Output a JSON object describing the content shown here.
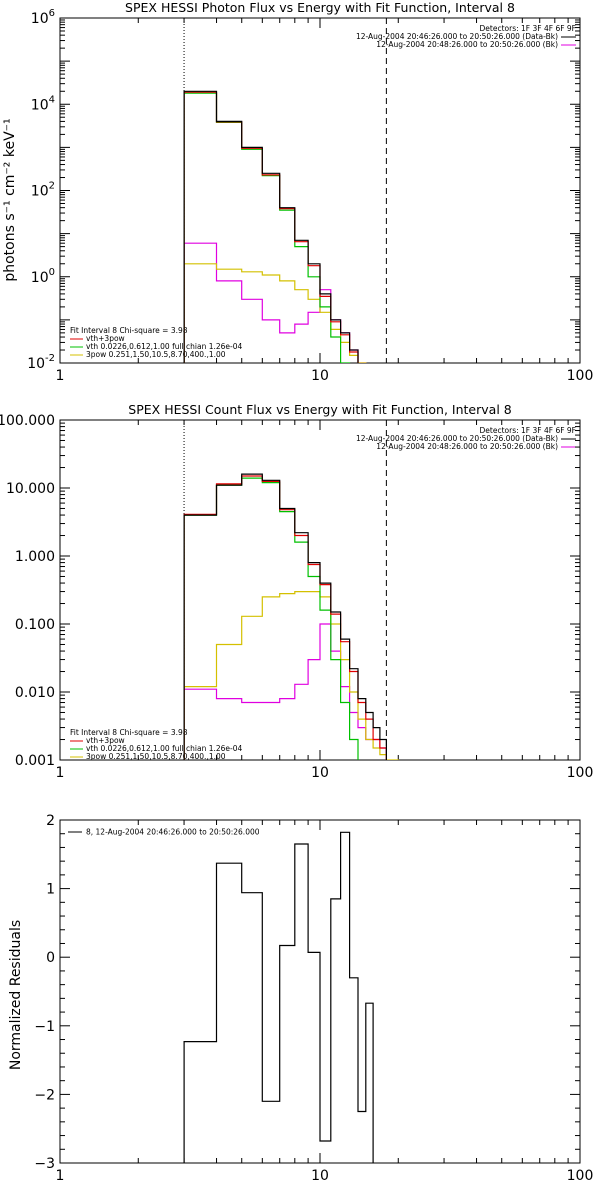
{
  "chart_data": [
    {
      "type": "line",
      "title": "SPEX HESSI Photon Flux vs Energy with Fit Function, Interval 8",
      "ylabel": "photons s⁻¹ cm⁻² keV⁻¹",
      "xlabel": "",
      "xscale": "log",
      "yscale": "log",
      "xlim": [
        1,
        100
      ],
      "ylim": [
        0.01,
        1000000
      ],
      "x_ticks": [
        "1",
        "10",
        "100"
      ],
      "y_ticks": [
        {
          "v": 0.01,
          "base": "10",
          "exp": "-2"
        },
        {
          "v": 1,
          "base": "10",
          "exp": "0"
        },
        {
          "v": 100,
          "base": "10",
          "exp": "2"
        },
        {
          "v": 10000,
          "base": "10",
          "exp": "4"
        },
        {
          "v": 1000000,
          "base": "10",
          "exp": "6"
        }
      ],
      "vlines": [
        {
          "x": 3.0,
          "style": "dotted",
          "color": "#000000"
        },
        {
          "x": 18.0,
          "style": "dashed",
          "color": "#000000"
        }
      ],
      "legend_right": {
        "header": "Detectors: 1F 3F 4F 6F 9F",
        "entries": [
          {
            "label": "12-Aug-2004 20:46:26.000 to 20:50:26.000 (Data-Bk)",
            "color": "#000000"
          },
          {
            "label": "12-Aug-2004 20:48:26.000 to 20:50:26.000 (Bk)",
            "color": "#e000e0"
          }
        ]
      },
      "legend_left": {
        "header": "Fit Interval 8   Chi-square = 3.98",
        "entries": [
          {
            "label": "vth+3pow",
            "color": "#e00000"
          },
          {
            "label": "vth 0.0226,0.612,1.00   full chian 1.26e-04",
            "color": "#00c000"
          },
          {
            "label": "3pow 0.251,1.50,10.5,8.70,400.,1.00",
            "color": "#d4c000"
          }
        ]
      },
      "bin_edges": [
        3.0,
        4.0,
        5.0,
        6.0,
        7.0,
        8.0,
        9.0,
        10.0,
        11.0,
        12.0,
        13.0,
        14.0,
        15.0,
        16.0,
        17.0,
        18.0,
        20.0
      ],
      "series": [
        {
          "name": "Data-Bk",
          "color": "#000000",
          "values": [
            20000,
            4000,
            1000,
            250,
            40,
            7,
            2,
            0.4,
            0.1,
            0.05,
            0.02
          ]
        },
        {
          "name": "vth+3pow",
          "color": "#e00000",
          "values": [
            19000,
            3900,
            950,
            230,
            38,
            6.5,
            1.8,
            0.35,
            0.09,
            0.045,
            0.018
          ]
        },
        {
          "name": "vth",
          "color": "#00c000",
          "values": [
            18000,
            3800,
            900,
            220,
            35,
            5,
            1,
            0.2,
            0.04,
            0.01,
            0.002
          ]
        },
        {
          "name": "3pow",
          "color": "#d4c000",
          "values": [
            2,
            1.5,
            1.3,
            1.1,
            0.8,
            0.5,
            0.3,
            0.15,
            0.06,
            0.03,
            0.015,
            0.01
          ]
        },
        {
          "name": "Bk",
          "color": "#e000e0",
          "values": [
            6,
            0.8,
            0.3,
            0.1,
            0.05,
            0.08,
            0.15,
            0.5,
            0.1,
            0.05,
            0.02,
            0.01
          ]
        }
      ]
    },
    {
      "type": "line",
      "title": "SPEX HESSI Count Flux vs Energy with Fit Function, Interval 8",
      "ylabel": "",
      "xlabel": "",
      "xscale": "log",
      "yscale": "log",
      "xlim": [
        1,
        100
      ],
      "ylim": [
        0.001,
        100
      ],
      "x_ticks": [
        "1",
        "10",
        "100"
      ],
      "y_ticks": [
        {
          "v": 0.001,
          "label": "0.001"
        },
        {
          "v": 0.01,
          "label": "0.010"
        },
        {
          "v": 0.1,
          "label": "0.100"
        },
        {
          "v": 1,
          "label": "1.000"
        },
        {
          "v": 10,
          "label": "10.000"
        },
        {
          "v": 100,
          "label": "100.000"
        }
      ],
      "vlines": [
        {
          "x": 3.0,
          "style": "dotted",
          "color": "#000000"
        },
        {
          "x": 18.0,
          "style": "dashed",
          "color": "#000000"
        }
      ],
      "legend_right": {
        "header": "Detectors: 1F 3F 4F 6F 9F",
        "entries": [
          {
            "label": "12-Aug-2004 20:46:26.000 to 20:50:26.000 (Data-Bk)",
            "color": "#000000"
          },
          {
            "label": "12-Aug-2004 20:48:26.000 to 20:50:26.000 (Bk)",
            "color": "#e000e0"
          }
        ]
      },
      "legend_left": {
        "header": "Fit Interval 8   Chi-square = 3.98",
        "entries": [
          {
            "label": "vth+3pow",
            "color": "#e00000"
          },
          {
            "label": "vth 0.0226,0.612,1.00   full chian 1.26e-04",
            "color": "#00c000"
          },
          {
            "label": "3pow 0.251,1.50,10.5,8.70,400.,1.00",
            "color": "#d4c000"
          }
        ]
      },
      "bin_edges": [
        3.0,
        4.0,
        5.0,
        6.0,
        7.0,
        8.0,
        9.0,
        10.0,
        11.0,
        12.0,
        13.0,
        14.0,
        15.0,
        16.0,
        17.0,
        18.0,
        20.0
      ],
      "series": [
        {
          "name": "Data-Bk",
          "color": "#000000",
          "values": [
            4,
            11,
            16,
            13,
            5,
            2.2,
            0.8,
            0.4,
            0.15,
            0.06,
            0.022,
            0.008,
            0.005,
            0.003,
            0.002
          ]
        },
        {
          "name": "vth+3pow",
          "color": "#e00000",
          "values": [
            4.1,
            11.5,
            15,
            12.5,
            4.8,
            2,
            0.75,
            0.38,
            0.14,
            0.055,
            0.02,
            0.007,
            0.004,
            0.002,
            0.0015
          ]
        },
        {
          "name": "vth",
          "color": "#00c000",
          "values": [
            4,
            11,
            14,
            12,
            4.5,
            1.6,
            0.5,
            0.16,
            0.03,
            0.007,
            0.002,
            0.0008
          ]
        },
        {
          "name": "3pow",
          "color": "#d4c000",
          "values": [
            0.012,
            0.05,
            0.13,
            0.25,
            0.28,
            0.3,
            0.3,
            0.25,
            0.1,
            0.03,
            0.01,
            0.004,
            0.002,
            0.0015,
            0.0012,
            0.001
          ]
        },
        {
          "name": "Bk",
          "color": "#e000e0",
          "values": [
            0.011,
            0.008,
            0.007,
            0.007,
            0.008,
            0.013,
            0.03,
            0.1,
            0.04,
            0.012,
            0.005,
            0.003,
            0.002,
            0.002,
            0.0015
          ]
        }
      ]
    },
    {
      "type": "line",
      "title": "",
      "ylabel": "Normalized Residuals",
      "xlabel": "",
      "xscale": "log",
      "yscale": "linear",
      "xlim": [
        1,
        100
      ],
      "ylim": [
        -3,
        2
      ],
      "x_ticks": [
        "1",
        "10",
        "100"
      ],
      "y_ticks": [
        {
          "v": -3,
          "label": "−3"
        },
        {
          "v": -2,
          "label": "−2"
        },
        {
          "v": -1,
          "label": "−1"
        },
        {
          "v": 0,
          "label": "0"
        },
        {
          "v": 1,
          "label": "1"
        },
        {
          "v": 2,
          "label": "2"
        }
      ],
      "legend_left": {
        "header": "",
        "entries": [
          {
            "label": "8, 12-Aug-2004 20:46:26.000 to 20:50:26.000",
            "color": "#000000"
          }
        ]
      },
      "bin_edges": [
        3.0,
        4.0,
        5.0,
        6.0,
        7.0,
        8.0,
        9.0,
        10.0,
        11.0,
        12.0,
        13.0,
        14.0,
        15.0,
        16.0,
        17.0,
        18.0
      ],
      "series": [
        {
          "name": "residuals",
          "color": "#000000",
          "values": [
            -1.23,
            1.37,
            0.94,
            -2.1,
            0.17,
            1.65,
            0.07,
            -2.68,
            0.85,
            1.82,
            -0.3,
            -2.25,
            -0.67
          ]
        }
      ]
    }
  ]
}
